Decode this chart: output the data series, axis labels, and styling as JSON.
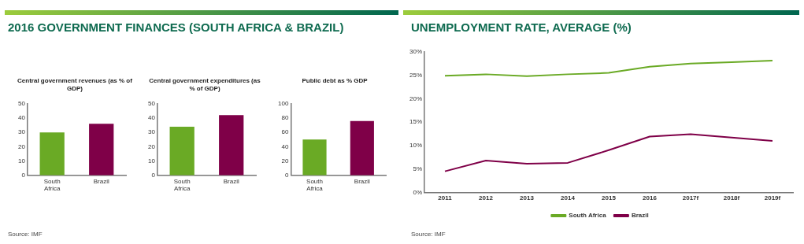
{
  "chart_data": [
    {
      "type": "bar",
      "title": "2016 GOVERNMENT FINANCES (SOUTH AFRICA & BRAZIL)",
      "subtitle": "Central government revenues (as % of GDP)",
      "categories": [
        "South Africa",
        "Brazil"
      ],
      "values": [
        30,
        36
      ],
      "colors": [
        "#6aaa25",
        "#7f0048"
      ],
      "ylim": [
        0,
        50
      ],
      "yticks": [
        0,
        10,
        20,
        30,
        40,
        50
      ],
      "grid": false,
      "annotations": [
        "Source: IMF"
      ]
    },
    {
      "type": "bar",
      "subtitle": "Central government expenditures (as % of GDP)",
      "categories": [
        "South Africa",
        "Brazil"
      ],
      "values": [
        34,
        42
      ],
      "colors": [
        "#6aaa25",
        "#7f0048"
      ],
      "ylim": [
        0,
        50
      ],
      "yticks": [
        0,
        10,
        20,
        30,
        40,
        50
      ],
      "grid": false
    },
    {
      "type": "bar",
      "subtitle": "Public debt as % GDP",
      "categories": [
        "South Africa",
        "Brazil"
      ],
      "values": [
        50,
        76
      ],
      "colors": [
        "#6aaa25",
        "#7f0048"
      ],
      "ylim": [
        0,
        100
      ],
      "yticks": [
        0,
        20,
        40,
        60,
        80,
        100
      ],
      "grid": false
    },
    {
      "type": "line",
      "title": "UNEMPLOYMENT RATE, AVERAGE (%)",
      "categories": [
        "2011",
        "2012",
        "2013",
        "2014",
        "2015",
        "2016",
        "2017f",
        "2018f",
        "2019f"
      ],
      "series": [
        {
          "name": "South Africa",
          "color": "#6aaa25",
          "values": [
            24.9,
            25.2,
            24.8,
            25.2,
            25.5,
            26.8,
            27.5,
            27.8,
            28.1
          ]
        },
        {
          "name": "Brazil",
          "color": "#7f0048",
          "values": [
            4.5,
            6.8,
            6.1,
            6.3,
            9.0,
            11.9,
            12.4,
            11.7,
            11.0
          ]
        }
      ],
      "ylim": [
        0,
        30
      ],
      "yticks": [
        {
          "value": 0,
          "label": "0%"
        },
        {
          "value": 5,
          "label": "5%"
        },
        {
          "value": 10,
          "label": "10%"
        },
        {
          "value": 15,
          "label": "15%"
        },
        {
          "value": 20,
          "label": "20%"
        },
        {
          "value": 25,
          "label": "25%"
        },
        {
          "value": 30,
          "label": "30%"
        }
      ],
      "grid": false,
      "legend": "bottom",
      "marker": "none",
      "annotations": [
        "Source: IMF"
      ]
    }
  ]
}
